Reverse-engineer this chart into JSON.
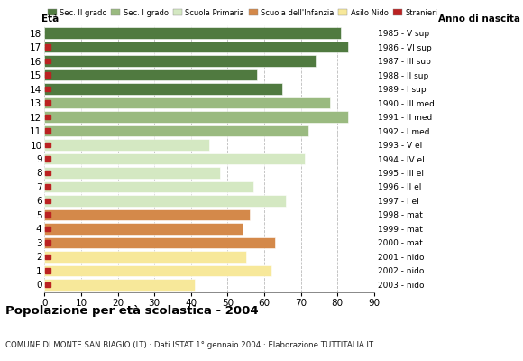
{
  "ages": [
    0,
    1,
    2,
    3,
    4,
    5,
    6,
    7,
    8,
    9,
    10,
    11,
    12,
    13,
    14,
    15,
    16,
    17,
    18
  ],
  "anno_nascita": [
    "2003 - nido",
    "2002 - nido",
    "2001 - nido",
    "2000 - mat",
    "1999 - mat",
    "1998 - mat",
    "1997 - I el",
    "1996 - II el",
    "1995 - III el",
    "1994 - IV el",
    "1993 - V el",
    "1992 - I med",
    "1991 - II med",
    "1990 - III med",
    "1989 - I sup",
    "1988 - II sup",
    "1987 - III sup",
    "1986 - VI sup",
    "1985 - V sup"
  ],
  "bar_values": [
    41,
    62,
    55,
    63,
    54,
    56,
    66,
    57,
    48,
    71,
    45,
    72,
    83,
    78,
    65,
    58,
    74,
    83,
    81
  ],
  "bar_colors": [
    "#f7e89a",
    "#f7e89a",
    "#f7e89a",
    "#d4894a",
    "#d4894a",
    "#d4894a",
    "#d4e8c2",
    "#d4e8c2",
    "#d4e8c2",
    "#d4e8c2",
    "#d4e8c2",
    "#9aba80",
    "#9aba80",
    "#9aba80",
    "#507a40",
    "#507a40",
    "#507a40",
    "#507a40",
    "#507a40"
  ],
  "stranieri_values": [
    1,
    1,
    1,
    1,
    2,
    2,
    1,
    1,
    1,
    2,
    1,
    1,
    1,
    1,
    1,
    1,
    1,
    1,
    0
  ],
  "stranieri_color": "#bb2222",
  "legend_labels": [
    "Sec. II grado",
    "Sec. I grado",
    "Scuola Primaria",
    "Scuola dell'Infanzia",
    "Asilo Nido",
    "Stranieri"
  ],
  "legend_colors": [
    "#507a40",
    "#9aba80",
    "#d4e8c2",
    "#d4894a",
    "#f7e89a",
    "#bb2222"
  ],
  "title": "Popolazione per età scolastica - 2004",
  "subtitle": "COMUNE DI MONTE SAN BIAGIO (LT) · Dati ISTAT 1° gennaio 2004 · Elaborazione TUTTITALIA.IT",
  "eta_label": "Età",
  "anno_label": "Anno di nascita",
  "xlim": [
    0,
    90
  ],
  "grid_ticks": [
    0,
    10,
    20,
    30,
    40,
    50,
    60,
    70,
    80,
    90
  ],
  "background_color": "#ffffff",
  "bar_height": 0.82
}
